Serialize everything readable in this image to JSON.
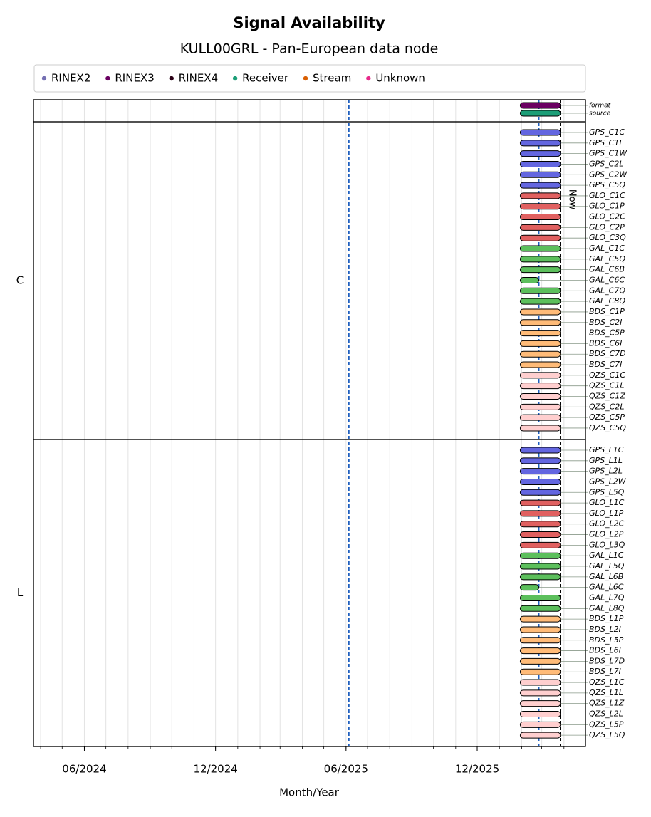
{
  "chart_data": {
    "type": "timeline",
    "title": "Signal Availability",
    "subtitle": "KULL00GRL - Pan-European data node",
    "xlabel": "Month/Year",
    "xlim": [
      "2024-03-22",
      "2026-05-01"
    ],
    "xticks": [
      {
        "value": "2024-06-01",
        "label": "06/2024"
      },
      {
        "value": "2024-12-01",
        "label": "12/2024"
      },
      {
        "value": "2025-06-01",
        "label": "06/2025"
      },
      {
        "value": "2025-12-01",
        "label": "12/2025"
      }
    ],
    "minor_xticks": [
      "2024-04-01",
      "2024-05-01",
      "2024-06-01",
      "2024-07-01",
      "2024-08-01",
      "2024-09-01",
      "2024-10-01",
      "2024-11-01",
      "2024-12-01",
      "2025-01-01",
      "2025-02-01",
      "2025-03-01",
      "2025-04-01",
      "2025-05-01",
      "2025-06-01",
      "2025-07-01",
      "2025-08-01",
      "2025-09-01",
      "2025-10-01",
      "2025-11-01",
      "2025-12-01",
      "2026-01-01",
      "2026-02-01",
      "2026-03-01",
      "2026-04-01"
    ],
    "grid": true,
    "legend": [
      {
        "name": "RINEX2",
        "color": "#7570b3"
      },
      {
        "name": "RINEX3",
        "color": "#6a0061"
      },
      {
        "name": "RINEX4",
        "color": "#2a0015"
      },
      {
        "name": "Receiver",
        "color": "#1b9e77"
      },
      {
        "name": "Stream",
        "color": "#d95f02"
      },
      {
        "name": "Unknown",
        "color": "#e7298a"
      }
    ],
    "ref_lines": [
      {
        "date": "2025-06-05",
        "color": "#1f5fbf"
      },
      {
        "date": "2026-02-25",
        "color": "#1f5fbf"
      }
    ],
    "now": {
      "date": "2026-03-27",
      "label": "Now"
    },
    "panels": [
      {
        "rows": [
          {
            "name": "format",
            "color": "#6a0061",
            "start": "2026-01-30",
            "end": "2026-03-27"
          },
          {
            "name": "source",
            "color": "#1b9e77",
            "start": "2026-01-30",
            "end": "2026-03-27"
          }
        ]
      },
      {
        "label": "C",
        "rows": [
          {
            "name": "GPS_C1C",
            "color": "#6366e0",
            "start": "2026-01-30",
            "end": "2026-03-27"
          },
          {
            "name": "GPS_C1L",
            "color": "#6366e0",
            "start": "2026-01-30",
            "end": "2026-03-27"
          },
          {
            "name": "GPS_C1W",
            "color": "#6366e0",
            "start": "2026-01-30",
            "end": "2026-03-27"
          },
          {
            "name": "GPS_C2L",
            "color": "#6366e0",
            "start": "2026-01-30",
            "end": "2026-03-27"
          },
          {
            "name": "GPS_C2W",
            "color": "#6366e0",
            "start": "2026-01-30",
            "end": "2026-03-27"
          },
          {
            "name": "GPS_C5Q",
            "color": "#6366e0",
            "start": "2026-01-30",
            "end": "2026-03-27"
          },
          {
            "name": "GLO_C1C",
            "color": "#e06060",
            "start": "2026-01-30",
            "end": "2026-03-27"
          },
          {
            "name": "GLO_C1P",
            "color": "#e06060",
            "start": "2026-01-30",
            "end": "2026-03-27"
          },
          {
            "name": "GLO_C2C",
            "color": "#e06060",
            "start": "2026-01-30",
            "end": "2026-03-27"
          },
          {
            "name": "GLO_C2P",
            "color": "#e06060",
            "start": "2026-01-30",
            "end": "2026-03-27"
          },
          {
            "name": "GLO_C3Q",
            "color": "#e06060",
            "start": "2026-01-30",
            "end": "2026-03-27"
          },
          {
            "name": "GAL_C1C",
            "color": "#5cbf5c",
            "start": "2026-01-30",
            "end": "2026-03-27"
          },
          {
            "name": "GAL_C5Q",
            "color": "#5cbf5c",
            "start": "2026-01-30",
            "end": "2026-03-27"
          },
          {
            "name": "GAL_C6B",
            "color": "#5cbf5c",
            "start": "2026-01-30",
            "end": "2026-03-27"
          },
          {
            "name": "GAL_C6C",
            "color": "#5cbf5c",
            "start": "2026-01-30",
            "end": "2026-02-25"
          },
          {
            "name": "GAL_C7Q",
            "color": "#5cbf5c",
            "start": "2026-01-30",
            "end": "2026-03-27"
          },
          {
            "name": "GAL_C8Q",
            "color": "#5cbf5c",
            "start": "2026-01-30",
            "end": "2026-03-27"
          },
          {
            "name": "BDS_C1P",
            "color": "#ffbb78",
            "start": "2026-01-30",
            "end": "2026-03-27"
          },
          {
            "name": "BDS_C2I",
            "color": "#ffbb78",
            "start": "2026-01-30",
            "end": "2026-03-27"
          },
          {
            "name": "BDS_C5P",
            "color": "#ffbb78",
            "start": "2026-01-30",
            "end": "2026-03-27"
          },
          {
            "name": "BDS_C6I",
            "color": "#ffbb78",
            "start": "2026-01-30",
            "end": "2026-03-27"
          },
          {
            "name": "BDS_C7D",
            "color": "#ffbb78",
            "start": "2026-01-30",
            "end": "2026-03-27"
          },
          {
            "name": "BDS_C7I",
            "color": "#ffbb78",
            "start": "2026-01-30",
            "end": "2026-03-27"
          },
          {
            "name": "QZS_C1C",
            "color": "#ffcfcf",
            "start": "2026-01-30",
            "end": "2026-03-27"
          },
          {
            "name": "QZS_C1L",
            "color": "#ffcfcf",
            "start": "2026-01-30",
            "end": "2026-03-27"
          },
          {
            "name": "QZS_C1Z",
            "color": "#ffcfcf",
            "start": "2026-01-30",
            "end": "2026-03-27"
          },
          {
            "name": "QZS_C2L",
            "color": "#ffcfcf",
            "start": "2026-01-30",
            "end": "2026-03-27"
          },
          {
            "name": "QZS_C5P",
            "color": "#ffcfcf",
            "start": "2026-01-30",
            "end": "2026-03-27"
          },
          {
            "name": "QZS_C5Q",
            "color": "#ffcfcf",
            "start": "2026-01-30",
            "end": "2026-03-27"
          }
        ]
      },
      {
        "label": "L",
        "rows": [
          {
            "name": "GPS_L1C",
            "color": "#6366e0",
            "start": "2026-01-30",
            "end": "2026-03-27"
          },
          {
            "name": "GPS_L1L",
            "color": "#6366e0",
            "start": "2026-01-30",
            "end": "2026-03-27"
          },
          {
            "name": "GPS_L2L",
            "color": "#6366e0",
            "start": "2026-01-30",
            "end": "2026-03-27"
          },
          {
            "name": "GPS_L2W",
            "color": "#6366e0",
            "start": "2026-01-30",
            "end": "2026-03-27"
          },
          {
            "name": "GPS_L5Q",
            "color": "#6366e0",
            "start": "2026-01-30",
            "end": "2026-03-27"
          },
          {
            "name": "GLO_L1C",
            "color": "#e06060",
            "start": "2026-01-30",
            "end": "2026-03-27"
          },
          {
            "name": "GLO_L1P",
            "color": "#e06060",
            "start": "2026-01-30",
            "end": "2026-03-27"
          },
          {
            "name": "GLO_L2C",
            "color": "#e06060",
            "start": "2026-01-30",
            "end": "2026-03-27"
          },
          {
            "name": "GLO_L2P",
            "color": "#e06060",
            "start": "2026-01-30",
            "end": "2026-03-27"
          },
          {
            "name": "GLO_L3Q",
            "color": "#e06060",
            "start": "2026-01-30",
            "end": "2026-03-27"
          },
          {
            "name": "GAL_L1C",
            "color": "#5cbf5c",
            "start": "2026-01-30",
            "end": "2026-03-27"
          },
          {
            "name": "GAL_L5Q",
            "color": "#5cbf5c",
            "start": "2026-01-30",
            "end": "2026-03-27"
          },
          {
            "name": "GAL_L6B",
            "color": "#5cbf5c",
            "start": "2026-01-30",
            "end": "2026-03-27"
          },
          {
            "name": "GAL_L6C",
            "color": "#5cbf5c",
            "start": "2026-01-30",
            "end": "2026-02-25"
          },
          {
            "name": "GAL_L7Q",
            "color": "#5cbf5c",
            "start": "2026-01-30",
            "end": "2026-03-27"
          },
          {
            "name": "GAL_L8Q",
            "color": "#5cbf5c",
            "start": "2026-01-30",
            "end": "2026-03-27"
          },
          {
            "name": "BDS_L1P",
            "color": "#ffbb78",
            "start": "2026-01-30",
            "end": "2026-03-27"
          },
          {
            "name": "BDS_L2I",
            "color": "#ffbb78",
            "start": "2026-01-30",
            "end": "2026-03-27"
          },
          {
            "name": "BDS_L5P",
            "color": "#ffbb78",
            "start": "2026-01-30",
            "end": "2026-03-27"
          },
          {
            "name": "BDS_L6I",
            "color": "#ffbb78",
            "start": "2026-01-30",
            "end": "2026-03-27"
          },
          {
            "name": "BDS_L7D",
            "color": "#ffbb78",
            "start": "2026-01-30",
            "end": "2026-03-27"
          },
          {
            "name": "BDS_L7I",
            "color": "#ffbb78",
            "start": "2026-01-30",
            "end": "2026-03-27"
          },
          {
            "name": "QZS_L1C",
            "color": "#ffcfcf",
            "start": "2026-01-30",
            "end": "2026-03-27"
          },
          {
            "name": "QZS_L1L",
            "color": "#ffcfcf",
            "start": "2026-01-30",
            "end": "2026-03-27"
          },
          {
            "name": "QZS_L1Z",
            "color": "#ffcfcf",
            "start": "2026-01-30",
            "end": "2026-03-27"
          },
          {
            "name": "QZS_L2L",
            "color": "#ffcfcf",
            "start": "2026-01-30",
            "end": "2026-03-27"
          },
          {
            "name": "QZS_L5P",
            "color": "#ffcfcf",
            "start": "2026-01-30",
            "end": "2026-03-27"
          },
          {
            "name": "QZS_L5Q",
            "color": "#ffcfcf",
            "start": "2026-01-30",
            "end": "2026-03-27"
          }
        ]
      }
    ]
  }
}
